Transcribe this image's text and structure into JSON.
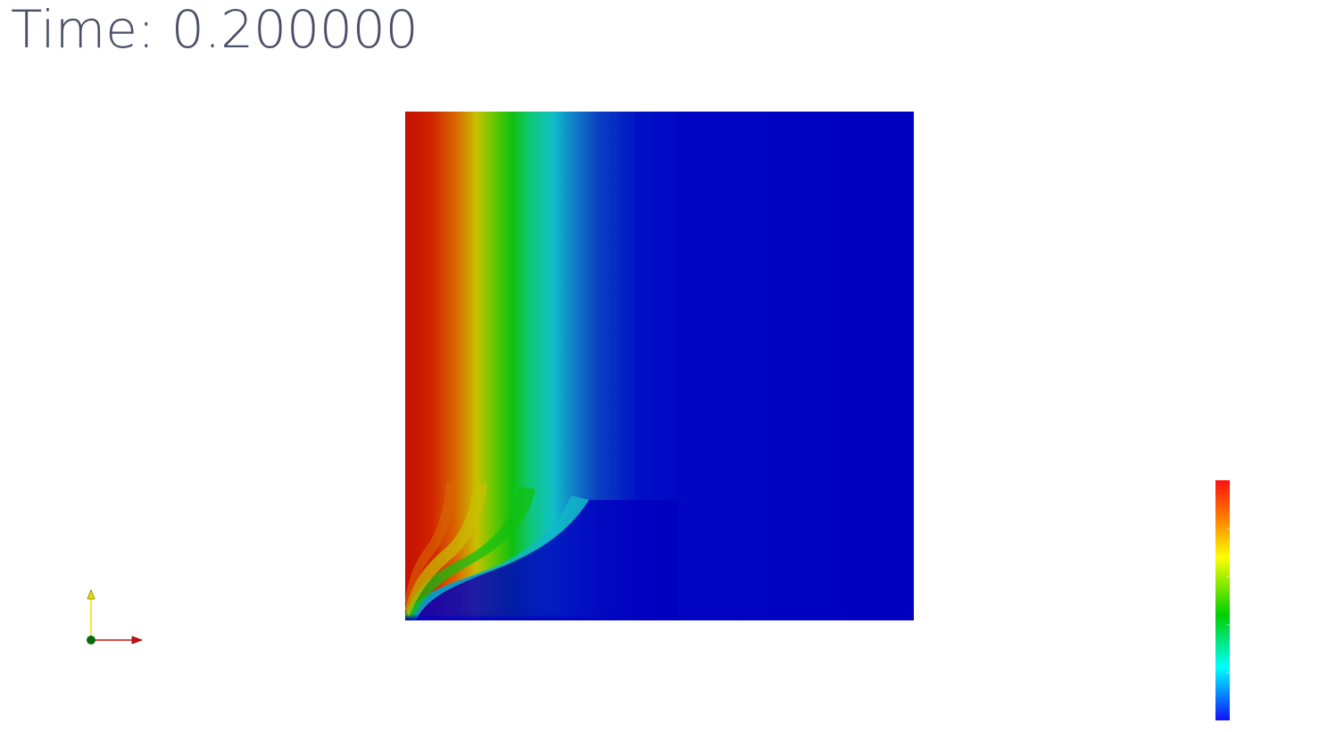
{
  "annotation": {
    "time_prefix": "Time:",
    "time_value": "0.200000"
  },
  "field_plot": {
    "colormap": [
      "#0000c0",
      "#0000ff",
      "#00ffff",
      "#00d000",
      "#ffff00",
      "#ff8000",
      "#ff0000"
    ],
    "background": "#ffffff"
  },
  "orientation_axes": {
    "x_axis_color": "#d01010",
    "y_axis_color": "#e8e000",
    "origin_color": "#0a6a0a"
  },
  "color_legend": {
    "stops": [
      "#1010ff",
      "#00ffff",
      "#00d000",
      "#ffff00",
      "#ff8000",
      "#ff1010"
    ]
  }
}
